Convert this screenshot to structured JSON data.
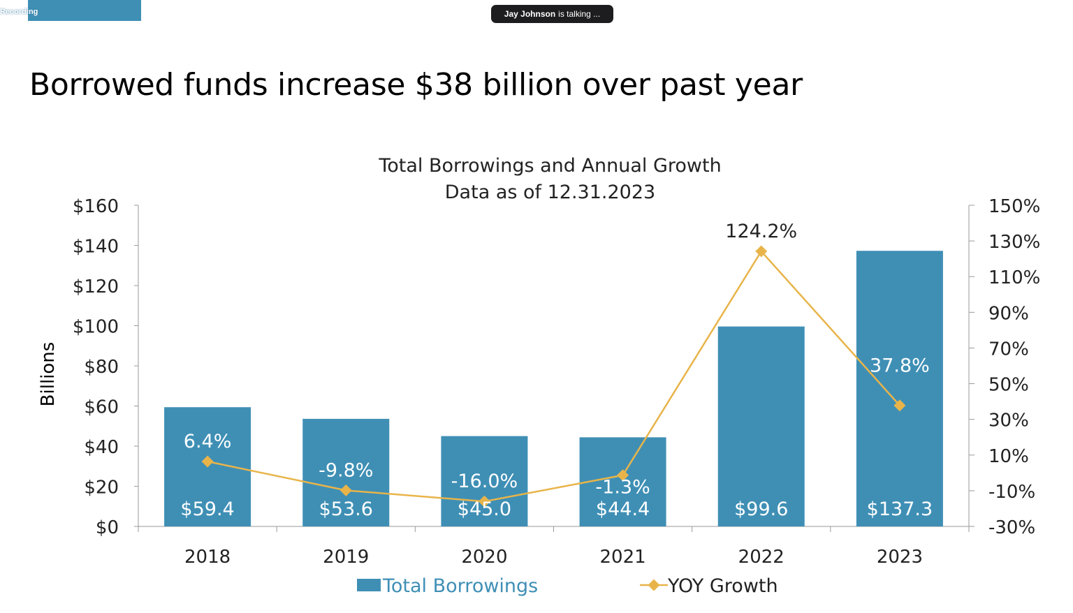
{
  "recording": {
    "label": "Recording"
  },
  "talking_indicator": {
    "name": "Jay Johnson",
    "suffix": "is talking ..."
  },
  "slide": {
    "title": "Borrowed funds increase $38 billion over past year"
  },
  "colors": {
    "bar": "#3f8fb5",
    "line": "#e8b44a",
    "recording_bar": "#3f8fb5",
    "text": "#222222",
    "axis": "#999999"
  },
  "chart_data": {
    "type": "bar",
    "title": "Total Borrowings and Annual Growth",
    "subtitle": "Data as of 12.31.2023",
    "ylabel": "Billions",
    "xlabel": "",
    "categories": [
      "2018",
      "2019",
      "2020",
      "2021",
      "2022",
      "2023"
    ],
    "ylim": [
      0,
      160
    ],
    "y_ticks": [
      "$0",
      "$20",
      "$40",
      "$60",
      "$80",
      "$100",
      "$120",
      "$140",
      "$160"
    ],
    "y2lim": [
      -30,
      150
    ],
    "y2_ticks": [
      "-30%",
      "-10%",
      "10%",
      "30%",
      "50%",
      "70%",
      "90%",
      "110%",
      "130%",
      "150%"
    ],
    "series": [
      {
        "name": "Total Borrowings",
        "type": "bar",
        "axis": "left",
        "values": [
          59.4,
          53.6,
          45.0,
          44.4,
          99.6,
          137.3
        ],
        "labels": [
          "$59.4",
          "$53.6",
          "$45.0",
          "$44.4",
          "$99.6",
          "$137.3"
        ]
      },
      {
        "name": "YOY Growth",
        "type": "line",
        "axis": "right",
        "values": [
          6.4,
          -9.8,
          -16.0,
          -1.3,
          124.2,
          37.8
        ],
        "labels": [
          "6.4%",
          "-9.8%",
          "-16.0%",
          "-1.3%",
          "124.2%",
          "37.8%"
        ]
      }
    ],
    "legend": "bottom"
  }
}
